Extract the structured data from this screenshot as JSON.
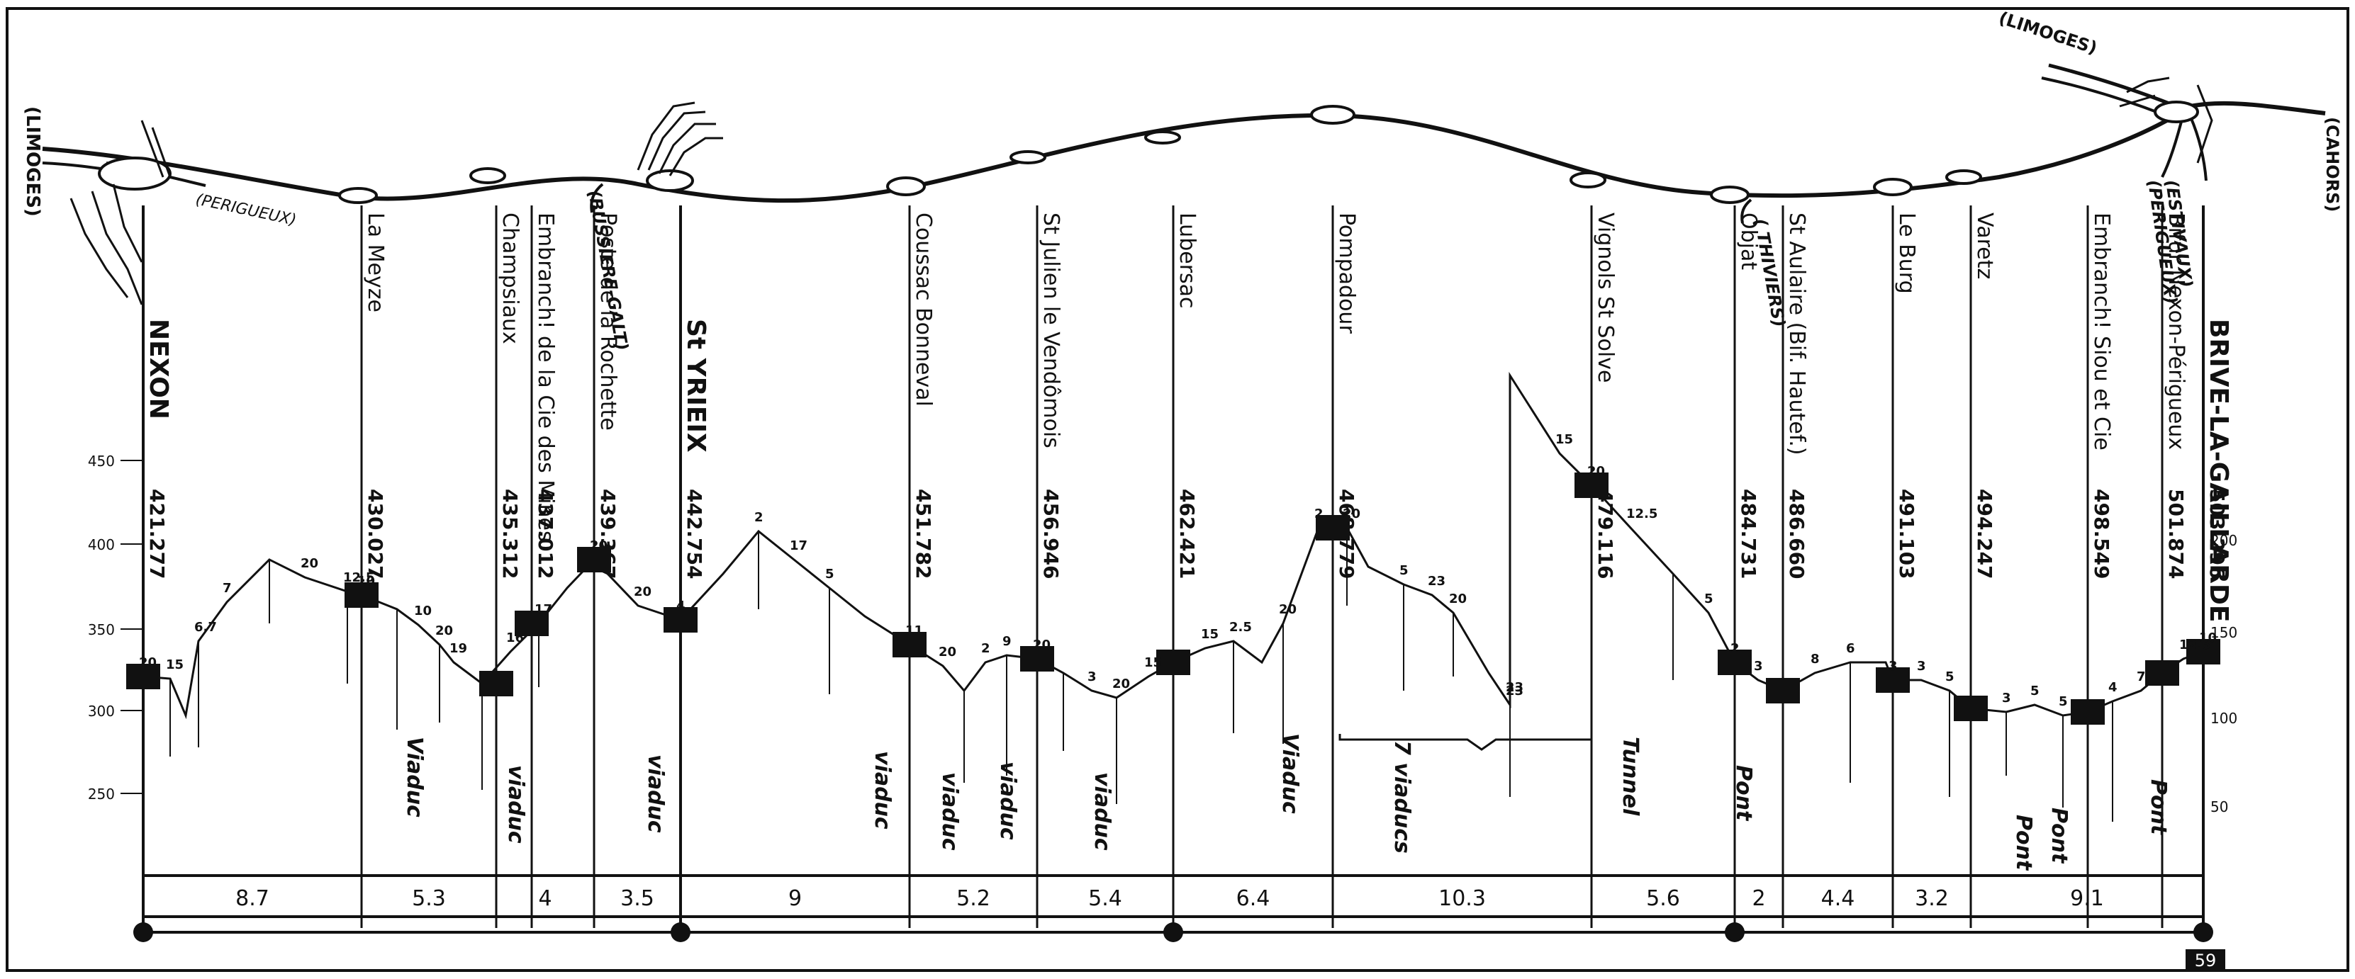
{
  "ends": {
    "left_top": "(LIMOGES)",
    "left_branch": "(PERIGUEUX)",
    "right_top": "(LIMOGES)",
    "right_far": "(CAHORS)"
  },
  "branch_labels": [
    {
      "id": "bussiere",
      "text": "(BUSSIERE-GALT)"
    },
    {
      "id": "thiviers",
      "text": "( THIVIERS)"
    },
    {
      "id": "estivaux",
      "text": "(ESTIVAUX)"
    },
    {
      "id": "perigueux2",
      "text": "(PERIGUEUX)"
    }
  ],
  "stations": [
    {
      "id": "nexon",
      "name": "NEXON",
      "alt": "421.277",
      "bold": true
    },
    {
      "id": "la-meyze",
      "name": "La Meyze",
      "alt": "430.027"
    },
    {
      "id": "champsiaux",
      "name": "Champsiaux",
      "alt": "435.312"
    },
    {
      "id": "embranch-mines",
      "name": "Embranch! de la Cie des Mines",
      "alt": "437.012"
    },
    {
      "id": "poste-rochette",
      "name": "Poste de la Rochette",
      "alt": "439.367"
    },
    {
      "id": "st-yrieix",
      "name": "St YRIEIX",
      "alt": "442.754",
      "bold": true
    },
    {
      "id": "coussac",
      "name": "Coussac Bonneval",
      "alt": "451.782"
    },
    {
      "id": "st-julien",
      "name": "St Julien le Vendômois",
      "alt": "456.946"
    },
    {
      "id": "lubersac",
      "name": "Lubersac",
      "alt": "462.421"
    },
    {
      "id": "pompadour",
      "name": "Pompadour",
      "alt": "468.779"
    },
    {
      "id": "vignols",
      "name": "Vignols St Solve",
      "alt": "479.116"
    },
    {
      "id": "objat",
      "name": "Objat",
      "alt": "484.731"
    },
    {
      "id": "st-aulaire",
      "name": "St Aulaire (Bif. Hautef.)",
      "alt": "486.660"
    },
    {
      "id": "le-burg",
      "name": "Le Burg",
      "alt": "491.103"
    },
    {
      "id": "varetz",
      "name": "Varetz",
      "alt": "494.247"
    },
    {
      "id": "embranch-siou",
      "name": "Embranch! Siou et Cie",
      "alt": "498.549"
    },
    {
      "id": "bifur",
      "name": "Bifur Nexon-Périgueux",
      "alt": "501.874"
    },
    {
      "id": "brive",
      "name": "BRIVE-LA-GAILLARDE",
      "alt": "503.296",
      "bold": true
    }
  ],
  "left_scale": [
    "450",
    "400",
    "350",
    "300",
    "250"
  ],
  "right_scale": [
    "200",
    "150",
    "100",
    "50"
  ],
  "gradients": [
    "20",
    "15",
    "6.7",
    "7",
    "20",
    "12.5",
    "10",
    "10",
    "20",
    "19",
    "16",
    "17",
    "20",
    "20",
    "4",
    "2",
    "17",
    "5",
    "11",
    "20",
    "2",
    "9",
    "20",
    "3",
    "20",
    "15",
    "15",
    "2.5",
    "20",
    "2",
    "20",
    "5",
    "23",
    "20",
    "23",
    "23",
    "15",
    "20",
    "12.5",
    "5",
    "2",
    "3",
    "8",
    "6",
    "3",
    "3",
    "5",
    "3",
    "5",
    "5",
    "4",
    "7",
    "12.5",
    "10"
  ],
  "works": [
    {
      "id": "viaduc-1",
      "text": "Viaduc"
    },
    {
      "id": "viaduc-2",
      "text": "viaduc"
    },
    {
      "id": "viaduc-3",
      "text": "viaduc"
    },
    {
      "id": "viaduc-4",
      "text": "viaduc"
    },
    {
      "id": "viaduc-5",
      "text": "viaduc"
    },
    {
      "id": "viaduc-6",
      "text": "viaduc"
    },
    {
      "id": "viaduc-7",
      "text": "viaduc"
    },
    {
      "id": "viaduc-8",
      "text": "Viaduc"
    },
    {
      "id": "viaducs-7",
      "text": "7 viaducs"
    },
    {
      "id": "tunnel",
      "text": "Tunnel"
    },
    {
      "id": "pont-1",
      "text": "Pont"
    },
    {
      "id": "pont-2",
      "text": "Pont"
    },
    {
      "id": "pont-3",
      "text": "Pont"
    },
    {
      "id": "pont-4",
      "text": "Pont"
    }
  ],
  "distances": [
    "8.7",
    "5.3",
    "4",
    "3.5",
    "9",
    "5.2",
    "5.4",
    "6.4",
    "10.3",
    "5.6",
    "2",
    "4.4",
    "3.2",
    "9.1"
  ],
  "page_number": "59"
}
